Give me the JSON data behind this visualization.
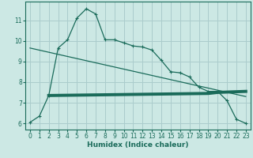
{
  "xlabel": "Humidex (Indice chaleur)",
  "bg_color": "#cce8e4",
  "grid_color": "#aacccc",
  "line_color": "#1a6b5a",
  "xlim": [
    -0.5,
    23.5
  ],
  "ylim": [
    5.7,
    11.9
  ],
  "xticks": [
    0,
    1,
    2,
    3,
    4,
    5,
    6,
    7,
    8,
    9,
    10,
    11,
    12,
    13,
    14,
    15,
    16,
    17,
    18,
    19,
    20,
    21,
    22,
    23
  ],
  "yticks": [
    6,
    7,
    8,
    9,
    10,
    11
  ],
  "curve1_x": [
    0,
    1,
    2,
    3,
    4,
    5,
    6,
    7,
    8,
    9,
    10,
    11,
    12,
    13,
    14,
    15,
    16,
    17,
    18,
    19,
    20,
    21,
    22,
    23
  ],
  "curve1_y": [
    6.05,
    6.35,
    7.35,
    9.65,
    10.05,
    11.1,
    11.55,
    11.3,
    10.05,
    10.05,
    9.9,
    9.75,
    9.7,
    9.55,
    9.05,
    8.5,
    8.45,
    8.25,
    7.75,
    7.55,
    7.55,
    7.1,
    6.2,
    6.0
  ],
  "curve2_x": [
    0,
    23
  ],
  "curve2_y": [
    9.65,
    7.3
  ],
  "curve3_x": [
    2,
    19,
    20,
    23
  ],
  "curve3_y": [
    7.35,
    7.45,
    7.5,
    7.55
  ],
  "marker": "+",
  "marker_size": 3.5
}
